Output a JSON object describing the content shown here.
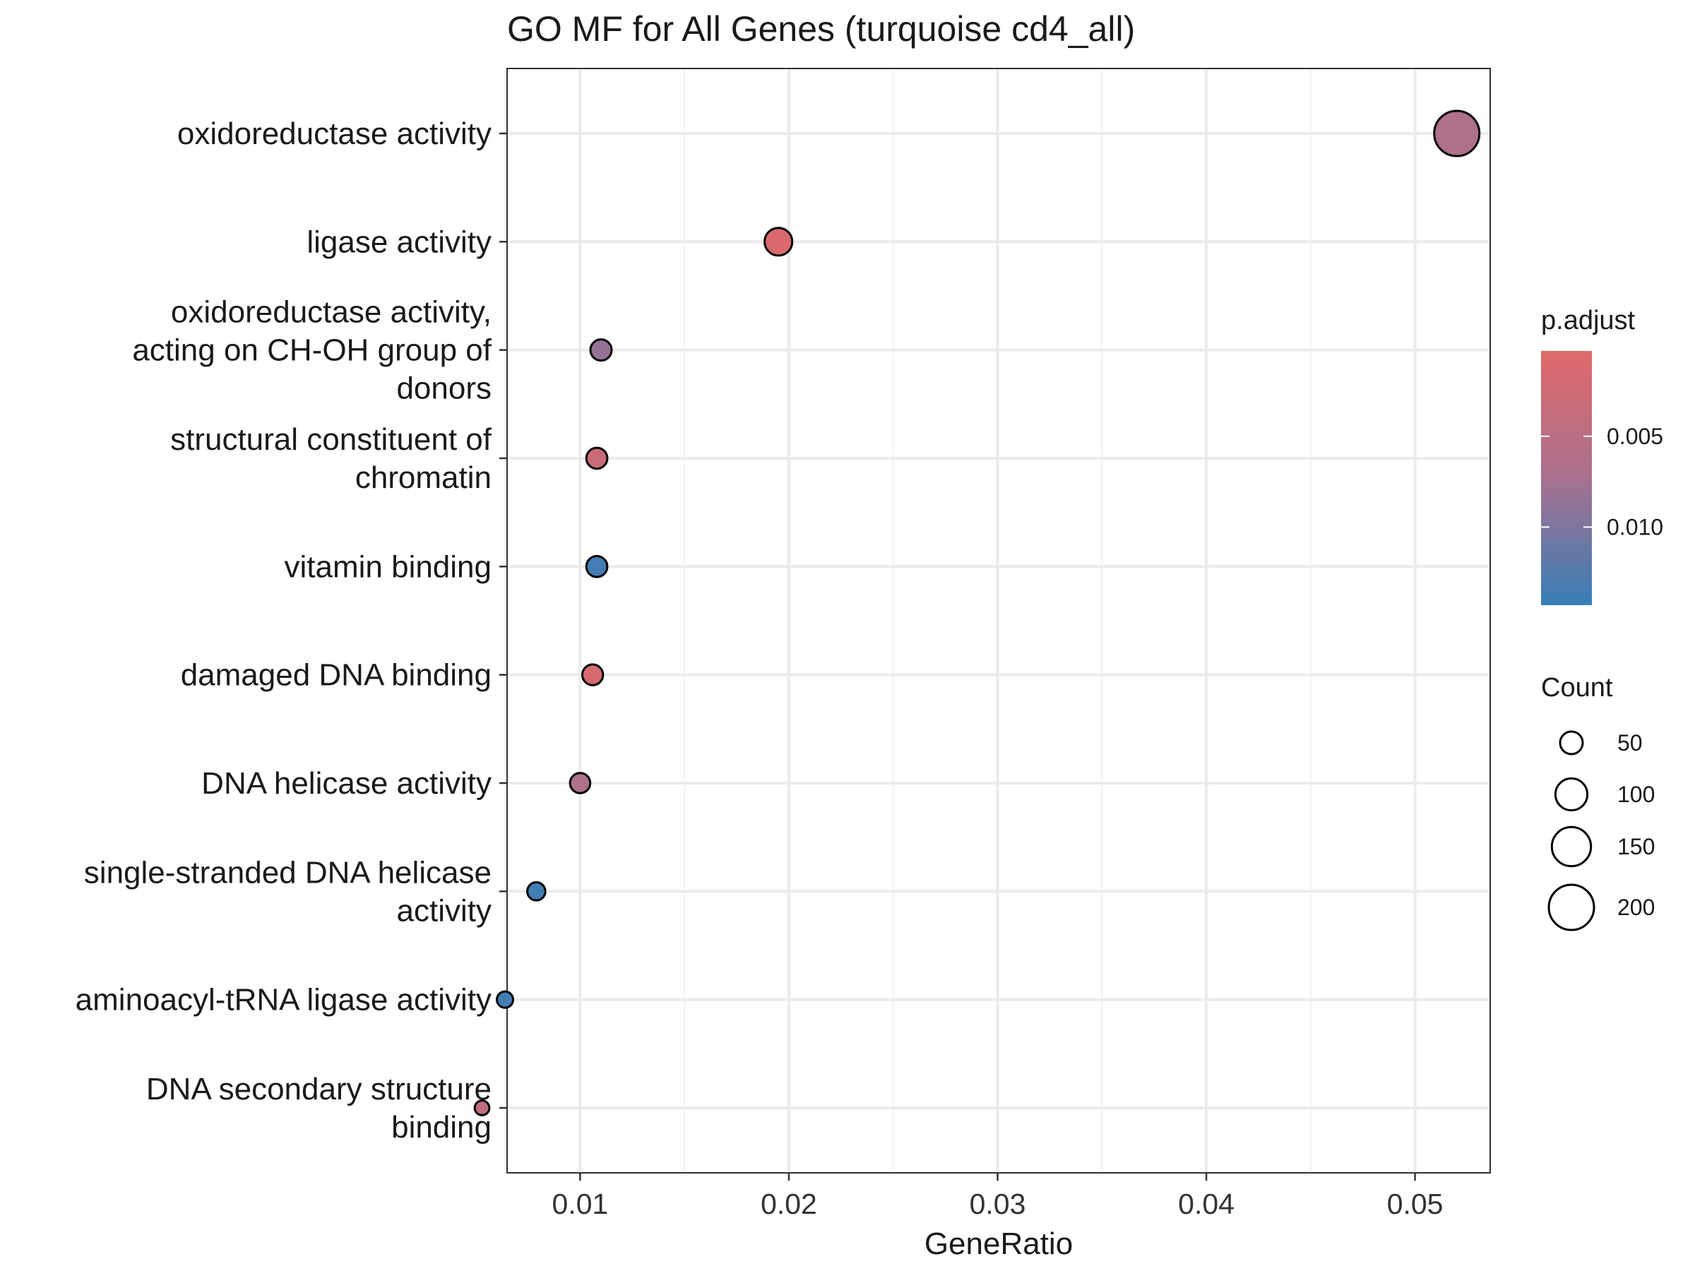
{
  "chart_data": {
    "type": "scatter",
    "title": "GO MF for All Genes (turquoise cd4_all)",
    "xlabel": "GeneRatio",
    "ylabel": "",
    "xlim": [
      0.0065,
      0.0536
    ],
    "xticks": [
      0.01,
      0.02,
      0.03,
      0.04,
      0.05
    ],
    "xtick_labels": [
      "0.01",
      "0.02",
      "0.03",
      "0.04",
      "0.05"
    ],
    "categories": [
      [
        "oxidoreductase activity"
      ],
      [
        "ligase activity"
      ],
      [
        "oxidoreductase activity,",
        "acting on CH-OH group of",
        "donors"
      ],
      [
        "structural constituent of",
        "chromatin"
      ],
      [
        "vitamin binding"
      ],
      [
        "damaged DNA binding"
      ],
      [
        "DNA helicase activity"
      ],
      [
        "single-stranded DNA helicase",
        "activity"
      ],
      [
        "aminoacyl-tRNA ligase activity"
      ],
      [
        "DNA secondary structure",
        "binding"
      ]
    ],
    "points": [
      {
        "gene_ratio": 0.052,
        "count": 200,
        "p_adjust": 0.0065
      },
      {
        "gene_ratio": 0.0195,
        "count": 75,
        "p_adjust": 0.001
      },
      {
        "gene_ratio": 0.011,
        "count": 44,
        "p_adjust": 0.0085
      },
      {
        "gene_ratio": 0.0108,
        "count": 43,
        "p_adjust": 0.003
      },
      {
        "gene_ratio": 0.0108,
        "count": 43,
        "p_adjust": 0.0135
      },
      {
        "gene_ratio": 0.0106,
        "count": 42,
        "p_adjust": 0.0015
      },
      {
        "gene_ratio": 0.01,
        "count": 40,
        "p_adjust": 0.0065
      },
      {
        "gene_ratio": 0.0079,
        "count": 32,
        "p_adjust": 0.0135
      },
      {
        "gene_ratio": 0.0064,
        "count": 26,
        "p_adjust": 0.0135
      },
      {
        "gene_ratio": 0.0053,
        "count": 21,
        "p_adjust": 0.0045
      }
    ],
    "legend_color": {
      "title": "p.adjust",
      "range": [
        0.0003,
        0.0143
      ],
      "ticks": [
        0.005,
        0.01
      ],
      "tick_labels": [
        "0.005",
        "0.010"
      ],
      "low_color": "#e0696a",
      "high_color": "#377eb8"
    },
    "legend_size": {
      "title": "Count",
      "values": [
        50,
        100,
        150,
        200
      ],
      "labels": [
        "50",
        "100",
        "150",
        "200"
      ]
    },
    "grid": true,
    "legend_position": "right"
  }
}
